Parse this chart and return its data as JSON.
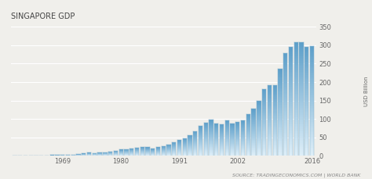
{
  "title": "SINGAPORE GDP",
  "ylabel": "USD Billion",
  "source_text": "SOURCE: TRADINGECONOMICS.COM | WORLD BANK",
  "years": [
    1960,
    1961,
    1962,
    1963,
    1964,
    1965,
    1966,
    1967,
    1968,
    1969,
    1970,
    1971,
    1972,
    1973,
    1974,
    1975,
    1976,
    1977,
    1978,
    1979,
    1980,
    1981,
    1982,
    1983,
    1984,
    1985,
    1986,
    1987,
    1988,
    1989,
    1990,
    1991,
    1992,
    1993,
    1994,
    1995,
    1996,
    1997,
    1998,
    1999,
    2000,
    2001,
    2002,
    2003,
    2004,
    2005,
    2006,
    2007,
    2008,
    2009,
    2010,
    2011,
    2012,
    2013,
    2014,
    2015,
    2016
  ],
  "gdp": [
    0.7,
    0.8,
    0.9,
    1.0,
    1.1,
    1.0,
    1.4,
    1.6,
    2.0,
    2.6,
    3.1,
    3.6,
    4.4,
    6.0,
    8.0,
    7.9,
    8.8,
    9.8,
    11.5,
    13.7,
    16.8,
    17.8,
    19.8,
    21.8,
    23.8,
    22.8,
    19.2,
    22.8,
    26.7,
    31.0,
    37.2,
    42.7,
    47.3,
    56.0,
    67.3,
    81.8,
    90.3,
    97.4,
    87.4,
    85.4,
    96.1,
    88.5,
    91.9,
    95.4,
    112.2,
    127.8,
    148.6,
    180.9,
    192.2,
    192.4,
    236.4,
    279.0,
    295.0,
    307.6,
    307.9,
    296.6,
    297.0
  ],
  "bar_color_top": "#5b9ec9",
  "bar_color_bottom": "#ddeef8",
  "bar_border_color": "#8ab4cc",
  "background_color": "#f0efeb",
  "plot_bg_color": "#f0efeb",
  "grid_color": "#ffffff",
  "ylim": [
    0,
    350
  ],
  "yticks": [
    0,
    50,
    100,
    150,
    200,
    250,
    300,
    350
  ],
  "xtick_labels": [
    "1969",
    "1980",
    "1991",
    "2002",
    "2016"
  ],
  "xtick_positions": [
    1969,
    1980,
    1991,
    2002,
    2016
  ],
  "title_fontsize": 7.0,
  "tick_fontsize": 6.0,
  "source_fontsize": 4.5
}
